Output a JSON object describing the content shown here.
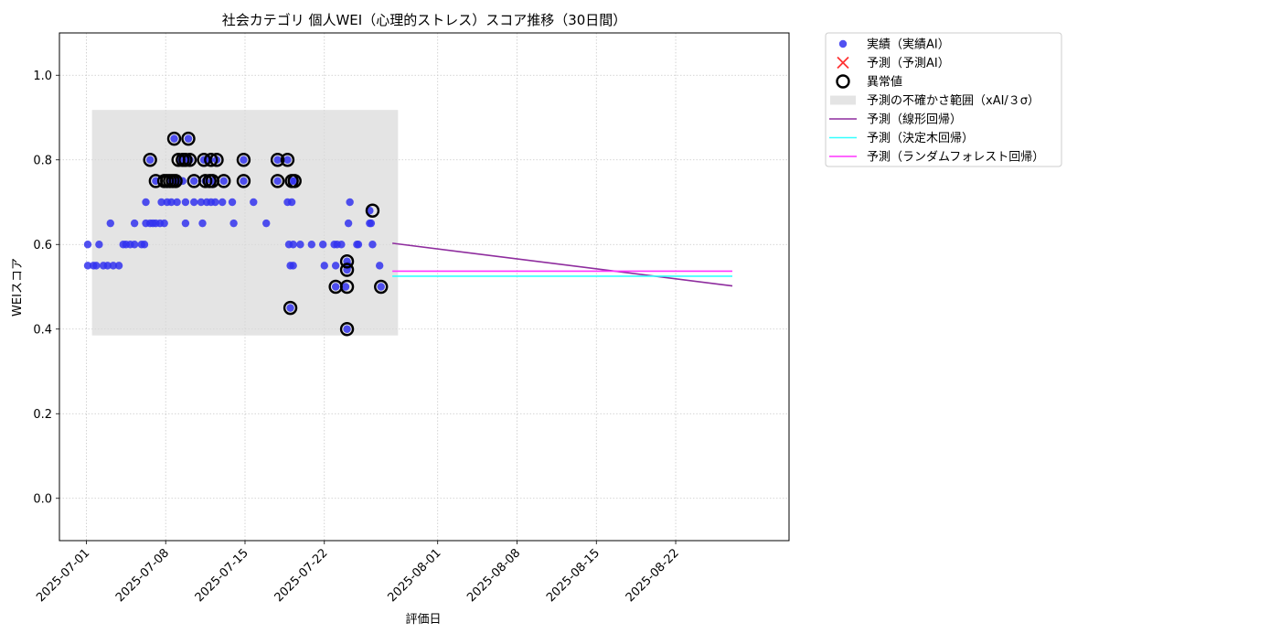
{
  "chart_data": {
    "type": "scatter",
    "title": "社会カテゴリ 個人WEI（心理的ストレス）スコア推移（30日間）",
    "xlabel": "評価日",
    "ylabel": "WEIスコア",
    "xlim": [
      "2025-06-28T15:00",
      "2025-09-01T00:00"
    ],
    "ylim": [
      -0.1,
      1.1
    ],
    "x_ticks": [
      "2025-07-01",
      "2025-07-08",
      "2025-07-15",
      "2025-07-22",
      "2025-08-01",
      "2025-08-08",
      "2025-08-15",
      "2025-08-22"
    ],
    "y_ticks": [
      "0.0",
      "0.2",
      "0.4",
      "0.6",
      "0.8",
      "1.0"
    ],
    "grid": true,
    "legend_position": "outside-top-right",
    "colors": {
      "actual": "#3333ee",
      "predicted": "#ff3333",
      "anomaly": "#000000",
      "band": "#d8d8d8",
      "linear": "#8e2c9e",
      "tree": "#33ffff",
      "forest": "#ff33ff"
    },
    "legend": [
      {
        "key": "actual",
        "label": "実績（実績AI）"
      },
      {
        "key": "predicted",
        "label": "予測（予測AI）"
      },
      {
        "key": "anomaly",
        "label": "異常値"
      },
      {
        "key": "band",
        "label": "予測の不確かさ範囲（xAI/３σ）"
      },
      {
        "key": "linear",
        "label": "予測（線形回帰）"
      },
      {
        "key": "tree",
        "label": "予測（決定木回帰）"
      },
      {
        "key": "forest",
        "label": "予測（ランダムフォレスト回帰）"
      }
    ],
    "uncertainty_band": {
      "x_start": "2025-07-01T12:00",
      "x_end": "2025-07-28T12:00",
      "y_low": 0.385,
      "y_high": 0.918
    },
    "series": [
      {
        "name": "実績（実績AI）",
        "points": [
          [
            "2025-07-01T03:00",
            0.6
          ],
          [
            "2025-07-01T03:00",
            0.55
          ],
          [
            "2025-07-01T15:00",
            0.55
          ],
          [
            "2025-07-01T21:00",
            0.55
          ],
          [
            "2025-07-02T03:00",
            0.6
          ],
          [
            "2025-07-02T12:00",
            0.55
          ],
          [
            "2025-07-02T21:00",
            0.55
          ],
          [
            "2025-07-03T03:00",
            0.65
          ],
          [
            "2025-07-03T09:00",
            0.55
          ],
          [
            "2025-07-03T21:00",
            0.55
          ],
          [
            "2025-07-04T06:00",
            0.6
          ],
          [
            "2025-07-04T12:00",
            0.6
          ],
          [
            "2025-07-04T21:00",
            0.6
          ],
          [
            "2025-07-05T06:00",
            0.65
          ],
          [
            "2025-07-05T06:00",
            0.6
          ],
          [
            "2025-07-05T21:00",
            0.6
          ],
          [
            "2025-07-06T03:00",
            0.6
          ],
          [
            "2025-07-06T06:00",
            0.7
          ],
          [
            "2025-07-06T06:00",
            0.65
          ],
          [
            "2025-07-06T15:00",
            0.65
          ],
          [
            "2025-07-06T15:00",
            0.8
          ],
          [
            "2025-07-06T21:00",
            0.65
          ],
          [
            "2025-07-07T03:00",
            0.65
          ],
          [
            "2025-07-07T03:00",
            0.75
          ],
          [
            "2025-07-07T12:00",
            0.65
          ],
          [
            "2025-07-07T15:00",
            0.7
          ],
          [
            "2025-07-07T21:00",
            0.65
          ],
          [
            "2025-07-08T03:00",
            0.7
          ],
          [
            "2025-07-08T12:00",
            0.7
          ],
          [
            "2025-07-08T12:00",
            0.75
          ],
          [
            "2025-07-08T18:00",
            0.85
          ],
          [
            "2025-07-08T21:00",
            0.75
          ],
          [
            "2025-07-09T00:00",
            0.7
          ],
          [
            "2025-07-09T03:00",
            0.75
          ],
          [
            "2025-07-09T06:00",
            0.8
          ],
          [
            "2025-07-09T12:00",
            0.75
          ],
          [
            "2025-07-09T18:00",
            0.7
          ],
          [
            "2025-07-09T18:00",
            0.65
          ],
          [
            "2025-07-09T21:00",
            0.8
          ],
          [
            "2025-07-10T00:00",
            0.85
          ],
          [
            "2025-07-10T03:00",
            0.8
          ],
          [
            "2025-07-10T12:00",
            0.7
          ],
          [
            "2025-07-10T12:00",
            0.75
          ],
          [
            "2025-07-11T03:00",
            0.7
          ],
          [
            "2025-07-11T06:00",
            0.65
          ],
          [
            "2025-07-11T09:00",
            0.8
          ],
          [
            "2025-07-11T12:00",
            0.75
          ],
          [
            "2025-07-11T15:00",
            0.7
          ],
          [
            "2025-07-11T21:00",
            0.8
          ],
          [
            "2025-07-12T00:00",
            0.7
          ],
          [
            "2025-07-12T03:00",
            0.75
          ],
          [
            "2025-07-12T09:00",
            0.7
          ],
          [
            "2025-07-12T12:00",
            0.8
          ],
          [
            "2025-07-13T00:00",
            0.7
          ],
          [
            "2025-07-13T03:00",
            0.75
          ],
          [
            "2025-07-13T21:00",
            0.7
          ],
          [
            "2025-07-14T00:00",
            0.65
          ],
          [
            "2025-07-14T21:00",
            0.8
          ],
          [
            "2025-07-14T21:00",
            0.75
          ],
          [
            "2025-07-15T18:00",
            0.7
          ],
          [
            "2025-07-16T21:00",
            0.65
          ],
          [
            "2025-07-17T21:00",
            0.8
          ],
          [
            "2025-07-17T21:00",
            0.75
          ],
          [
            "2025-07-18T18:00",
            0.8
          ],
          [
            "2025-07-18T18:00",
            0.7
          ],
          [
            "2025-07-18T21:00",
            0.6
          ],
          [
            "2025-07-19T00:00",
            0.55
          ],
          [
            "2025-07-19T00:00",
            0.45
          ],
          [
            "2025-07-19T03:00",
            0.75
          ],
          [
            "2025-07-19T03:00",
            0.7
          ],
          [
            "2025-07-19T06:00",
            0.6
          ],
          [
            "2025-07-19T06:00",
            0.55
          ],
          [
            "2025-07-19T09:00",
            0.75
          ],
          [
            "2025-07-19T21:00",
            0.6
          ],
          [
            "2025-07-20T21:00",
            0.6
          ],
          [
            "2025-07-21T21:00",
            0.6
          ],
          [
            "2025-07-22T00:00",
            0.55
          ],
          [
            "2025-07-22T21:00",
            0.6
          ],
          [
            "2025-07-23T00:00",
            0.55
          ],
          [
            "2025-07-23T00:00",
            0.5
          ],
          [
            "2025-07-23T03:00",
            0.6
          ],
          [
            "2025-07-23T12:00",
            0.6
          ],
          [
            "2025-07-23T21:00",
            0.5
          ],
          [
            "2025-07-24T00:00",
            0.56
          ],
          [
            "2025-07-24T00:00",
            0.54
          ],
          [
            "2025-07-24T00:00",
            0.4
          ],
          [
            "2025-07-24T03:00",
            0.65
          ],
          [
            "2025-07-24T03:00",
            0.55
          ],
          [
            "2025-07-24T06:00",
            0.7
          ],
          [
            "2025-07-24T21:00",
            0.6
          ],
          [
            "2025-07-25T00:00",
            0.6
          ],
          [
            "2025-07-26T00:00",
            0.65
          ],
          [
            "2025-07-26T00:00",
            0.68
          ],
          [
            "2025-07-26T03:00",
            0.65
          ],
          [
            "2025-07-26T06:00",
            0.6
          ],
          [
            "2025-07-26T21:00",
            0.55
          ],
          [
            "2025-07-27T00:00",
            0.5
          ]
        ]
      },
      {
        "name": "異常値",
        "points": [
          [
            "2025-07-06T15:00",
            0.8
          ],
          [
            "2025-07-07T03:00",
            0.75
          ],
          [
            "2025-07-07T21:00",
            0.75
          ],
          [
            "2025-07-08T03:00",
            0.75
          ],
          [
            "2025-07-08T09:00",
            0.75
          ],
          [
            "2025-07-08T15:00",
            0.75
          ],
          [
            "2025-07-08T18:00",
            0.85
          ],
          [
            "2025-07-08T21:00",
            0.75
          ],
          [
            "2025-07-09T03:00",
            0.8
          ],
          [
            "2025-07-09T12:00",
            0.8
          ],
          [
            "2025-07-09T18:00",
            0.8
          ],
          [
            "2025-07-10T00:00",
            0.85
          ],
          [
            "2025-07-10T03:00",
            0.8
          ],
          [
            "2025-07-10T12:00",
            0.75
          ],
          [
            "2025-07-11T09:00",
            0.8
          ],
          [
            "2025-07-11T12:00",
            0.75
          ],
          [
            "2025-07-11T21:00",
            0.75
          ],
          [
            "2025-07-12T00:00",
            0.8
          ],
          [
            "2025-07-12T03:00",
            0.75
          ],
          [
            "2025-07-12T12:00",
            0.8
          ],
          [
            "2025-07-13T03:00",
            0.75
          ],
          [
            "2025-07-14T21:00",
            0.8
          ],
          [
            "2025-07-14T21:00",
            0.75
          ],
          [
            "2025-07-17T21:00",
            0.8
          ],
          [
            "2025-07-17T21:00",
            0.75
          ],
          [
            "2025-07-18T18:00",
            0.8
          ],
          [
            "2025-07-19T00:00",
            0.45
          ],
          [
            "2025-07-19T03:00",
            0.75
          ],
          [
            "2025-07-19T09:00",
            0.75
          ],
          [
            "2025-07-23T00:00",
            0.5
          ],
          [
            "2025-07-24T00:00",
            0.56
          ],
          [
            "2025-07-24T00:00",
            0.54
          ],
          [
            "2025-07-24T00:00",
            0.5
          ],
          [
            "2025-07-24T00:00",
            0.4
          ],
          [
            "2025-07-26T06:00",
            0.68
          ],
          [
            "2025-07-27T00:00",
            0.5
          ]
        ]
      }
    ],
    "lines": [
      {
        "name": "予測（線形回帰）",
        "key": "linear",
        "points": [
          [
            "2025-07-28T00:00",
            0.603
          ],
          [
            "2025-08-27T00:00",
            0.502
          ]
        ]
      },
      {
        "name": "予測（決定木回帰）",
        "key": "tree",
        "points": [
          [
            "2025-07-28T00:00",
            0.525
          ],
          [
            "2025-08-27T00:00",
            0.525
          ]
        ]
      },
      {
        "name": "予測（ランダムフォレスト回帰）",
        "key": "forest",
        "points": [
          [
            "2025-07-28T00:00",
            0.537
          ],
          [
            "2025-08-27T00:00",
            0.537
          ]
        ]
      }
    ]
  }
}
